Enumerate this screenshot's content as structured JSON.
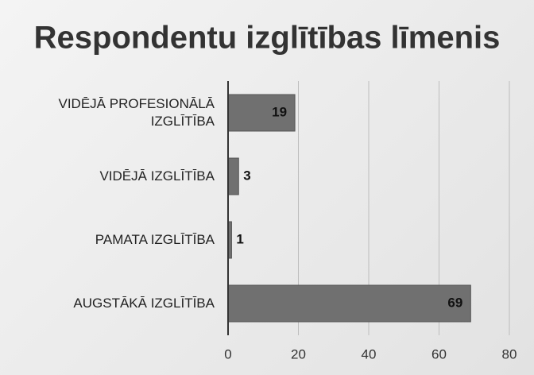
{
  "chart_data": {
    "type": "bar",
    "orientation": "horizontal",
    "title": "Respondentu izglītības līmenis",
    "categories": [
      "VIDĒJĀ PROFESIONĀLĀ IZGLĪTĪBA",
      "VIDĒJĀ IZGLĪTĪBA",
      "PAMATA IZGLĪTĪBA",
      "AUGSTĀKĀ IZGLĪTĪBA"
    ],
    "values": [
      19,
      3,
      1,
      69
    ],
    "color": "#707070",
    "xlim": [
      0,
      80
    ],
    "xticks": [
      0,
      20,
      40,
      60,
      80
    ],
    "grid": true
  }
}
